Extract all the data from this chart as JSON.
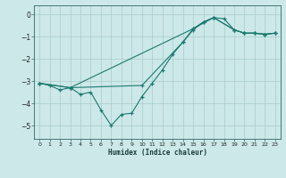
{
  "xlabel": "Humidex (Indice chaleur)",
  "bg_color": "#cce8e8",
  "grid_color": "#aacccc",
  "line_color": "#1a7a6e",
  "xlim": [
    -0.5,
    23.5
  ],
  "ylim": [
    -5.6,
    0.4
  ],
  "xticks": [
    0,
    1,
    2,
    3,
    4,
    5,
    6,
    7,
    8,
    9,
    10,
    11,
    12,
    13,
    14,
    15,
    16,
    17,
    18,
    19,
    20,
    21,
    22,
    23
  ],
  "yticks": [
    0,
    -1,
    -2,
    -3,
    -4,
    -5
  ],
  "lines": [
    {
      "x": [
        0,
        1,
        2,
        3,
        4,
        5,
        6,
        7,
        8,
        9,
        10,
        11,
        12,
        13,
        14,
        15,
        16,
        17,
        18,
        19,
        20,
        21,
        22,
        23
      ],
      "y": [
        -3.1,
        -3.2,
        -3.4,
        -3.3,
        -3.6,
        -3.5,
        -4.3,
        -5.0,
        -4.5,
        -4.45,
        -3.7,
        -3.1,
        -2.5,
        -1.8,
        -1.25,
        -0.7,
        -0.35,
        -0.15,
        -0.2,
        -0.7,
        -0.85,
        -0.85,
        -0.9,
        -0.85
      ]
    },
    {
      "x": [
        0,
        3,
        15,
        17,
        19,
        20,
        21,
        22,
        23
      ],
      "y": [
        -3.1,
        -3.3,
        -0.65,
        -0.15,
        -0.7,
        -0.85,
        -0.85,
        -0.9,
        -0.85
      ]
    },
    {
      "x": [
        0,
        3,
        10,
        14,
        15,
        16,
        17,
        19,
        20,
        21,
        22,
        23
      ],
      "y": [
        -3.1,
        -3.3,
        -3.2,
        -1.25,
        -0.65,
        -0.35,
        -0.15,
        -0.7,
        -0.85,
        -0.85,
        -0.9,
        -0.85
      ]
    }
  ]
}
